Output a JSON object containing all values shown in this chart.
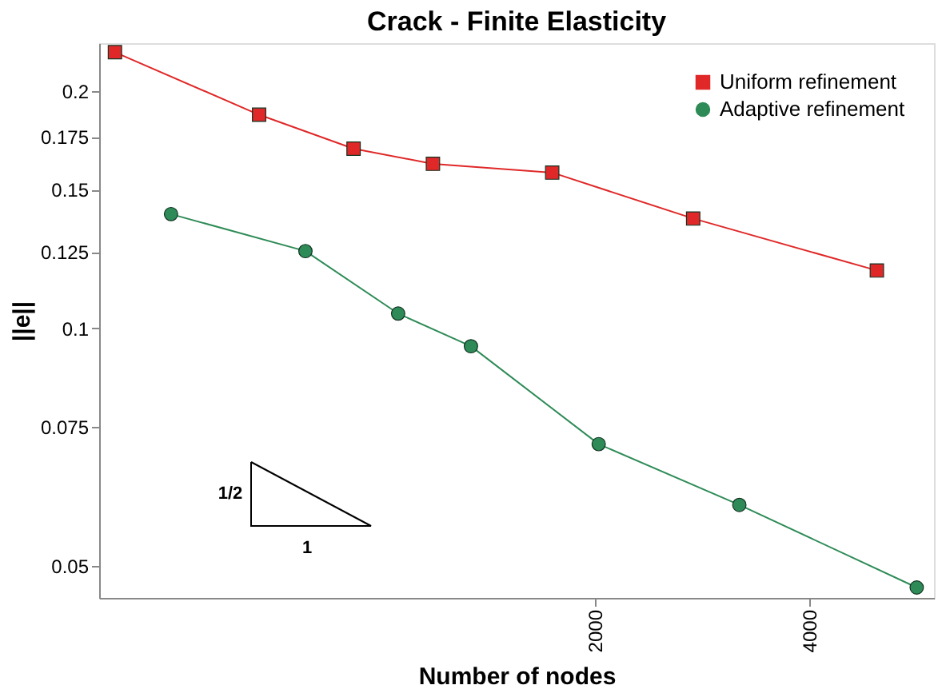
{
  "chart_data": {
    "type": "line",
    "title": "Crack  - Finite Elasticity",
    "xlabel": "Number of nodes",
    "ylabel": "||e||",
    "log": "xy",
    "xlim": [
      400,
      6000
    ],
    "ylim": [
      0.0455,
      0.23
    ],
    "xticks": [
      2000,
      4000
    ],
    "yticks": [
      0.05,
      0.075,
      0.1,
      0.125,
      0.15,
      0.175,
      0.2
    ],
    "grid": false,
    "legend": "top right",
    "annotations": [
      "1/2",
      "1"
    ],
    "series": [
      {
        "name": "Uniform refinement",
        "color": "#e02828",
        "marker": "square",
        "x": [
          421,
          672,
          913,
          1181,
          1739,
          2747,
          4985
        ],
        "values": [
          0.224,
          0.1866,
          0.169,
          0.1617,
          0.1576,
          0.1378,
          0.1184
        ]
      },
      {
        "name": "Adaptive refinement",
        "color": "#2e8b57",
        "marker": "circle",
        "x": [
          505,
          781,
          1055,
          1336,
          2022,
          3191,
          5673
        ],
        "values": [
          0.1396,
          0.1253,
          0.1044,
          0.0949,
          0.0713,
          0.0597,
          0.0469
        ]
      }
    ]
  }
}
